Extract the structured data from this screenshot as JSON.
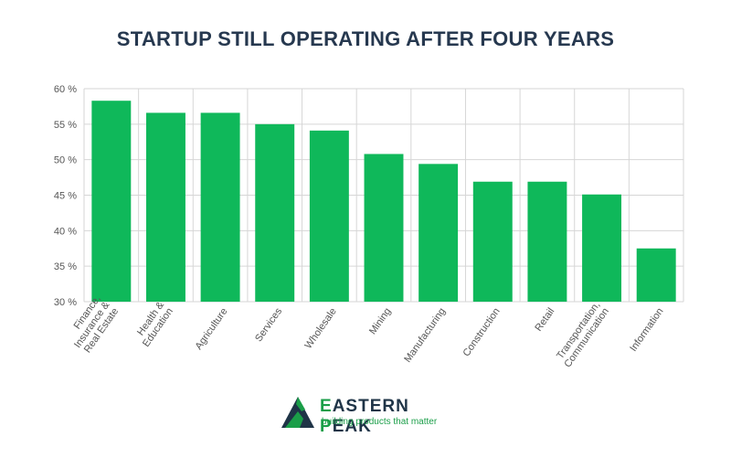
{
  "title": "STARTUP STILL OPERATING AFTER FOUR YEARS",
  "brand": {
    "name_first_letter": "E",
    "name_rest": "ASTERN ",
    "name_second_letter": "P",
    "name_end": "EAK",
    "tagline": "building products that matter",
    "colors": {
      "green": "#1a9e48",
      "navy": "#1f3447"
    }
  },
  "colors": {
    "bar": "#0fb85a",
    "grid": "#d6d6d6",
    "title": "#26384f"
  },
  "chart_data": {
    "type": "bar",
    "title": "STARTUP STILL OPERATING AFTER FOUR YEARS",
    "xlabel": "",
    "ylabel": "",
    "ylim": [
      30,
      60
    ],
    "yticks": [
      30,
      35,
      40,
      45,
      50,
      55,
      60
    ],
    "ytick_labels": [
      "30 %",
      "35 %",
      "40 %",
      "45 %",
      "50 %",
      "55 %",
      "60 %"
    ],
    "grid": true,
    "categories": [
      [
        "Finance,",
        "Insurance &",
        "Real Estate"
      ],
      [
        "Health &",
        "Education"
      ],
      [
        "Agriculture"
      ],
      [
        "Services"
      ],
      [
        "Wholesale"
      ],
      [
        "Mining"
      ],
      [
        "Manufacturing"
      ],
      [
        "Construction"
      ],
      [
        "Retail"
      ],
      [
        "Transportation,",
        "Communication"
      ],
      [
        "Information"
      ]
    ],
    "values": [
      58.3,
      56.6,
      56.6,
      55.0,
      54.1,
      50.8,
      49.4,
      46.9,
      46.9,
      45.1,
      37.5
    ]
  }
}
